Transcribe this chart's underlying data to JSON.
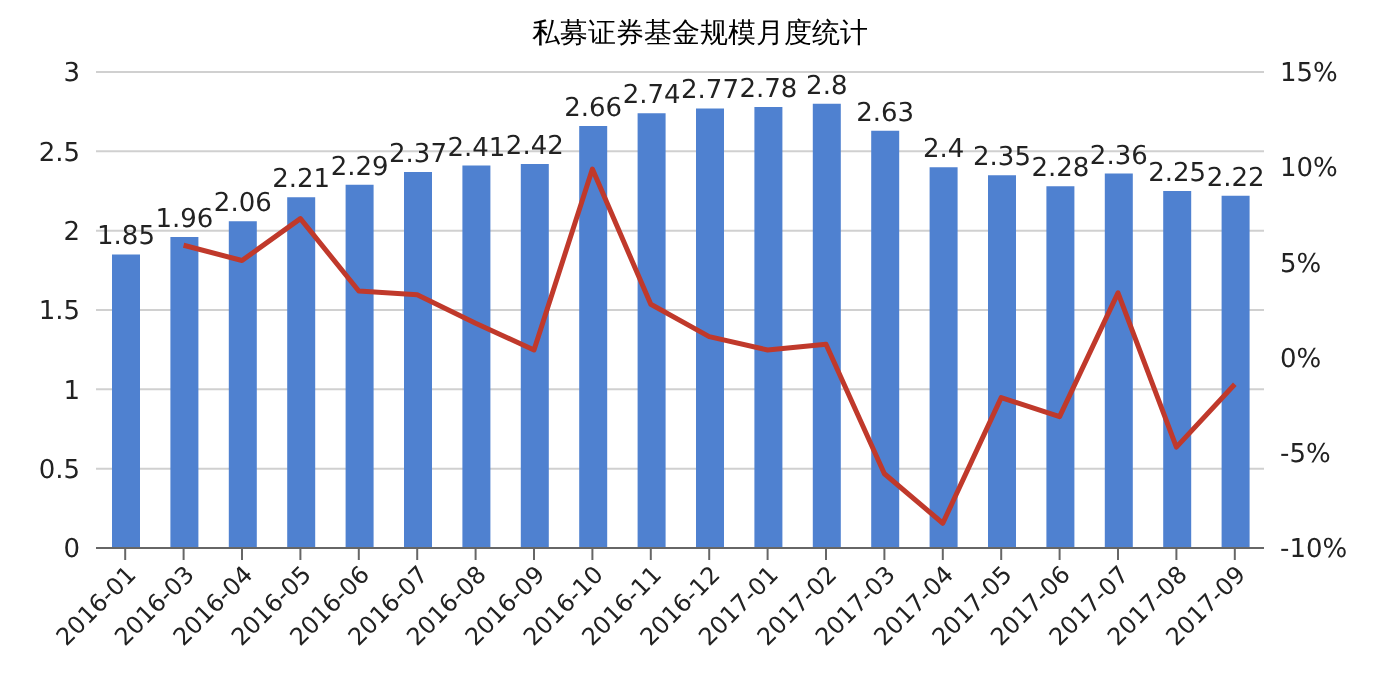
{
  "chart_data": {
    "type": "bar",
    "title": "私募证券基金规模月度统计",
    "categories": [
      "2016-01",
      "2016-03",
      "2016-04",
      "2016-05",
      "2016-06",
      "2016-07",
      "2016-08",
      "2016-09",
      "2016-10",
      "2016-11",
      "2016-12",
      "2017-01",
      "2017-02",
      "2017-03",
      "2017-04",
      "2017-05",
      "2017-06",
      "2017-07",
      "2017-08",
      "2017-09"
    ],
    "series": [
      {
        "color": "#4f81d0",
        "values": [
          1.85,
          1.96,
          2.06,
          2.21,
          2.29,
          2.37,
          2.41,
          2.42,
          2.66,
          2.74,
          2.77,
          2.78,
          2.8,
          2.63,
          2.4,
          2.35,
          2.28,
          2.36,
          2.25,
          2.22
        ],
        "value_labels": [
          "1.85",
          "1.96",
          "2.06",
          "2.21",
          "2.29",
          "2.37",
          "2.41",
          "2.42",
          "2.66",
          "2.74",
          "2.77",
          "2.78",
          "2.8",
          "2.63",
          "2.4",
          "2.35",
          "2.28",
          "2.36",
          "2.25",
          "2.22"
        ]
      },
      {
        "type": "line",
        "axis": "y2",
        "color": "#c0392b",
        "values": [
          null,
          5.9,
          5.1,
          7.3,
          3.5,
          3.3,
          1.8,
          0.4,
          9.9,
          2.8,
          1.1,
          0.4,
          0.7,
          -6.1,
          -8.7,
          -2.1,
          -3.1,
          3.4,
          -4.7,
          -1.4
        ]
      }
    ],
    "ylim": [
      0,
      3
    ],
    "yticks": [
      0,
      0.5,
      1,
      1.5,
      2,
      2.5,
      3
    ],
    "y2lim": [
      -10,
      15
    ],
    "y2ticks": [
      {
        "value": -10,
        "label": "-10%"
      },
      {
        "value": -5,
        "label": "-5%"
      },
      {
        "value": 0,
        "label": "0%"
      },
      {
        "value": 5,
        "label": "5%"
      },
      {
        "value": 10,
        "label": "10%"
      },
      {
        "value": 15,
        "label": "15%"
      }
    ],
    "grid": "y",
    "legend": false,
    "marker": "none",
    "line_style": "solid"
  }
}
